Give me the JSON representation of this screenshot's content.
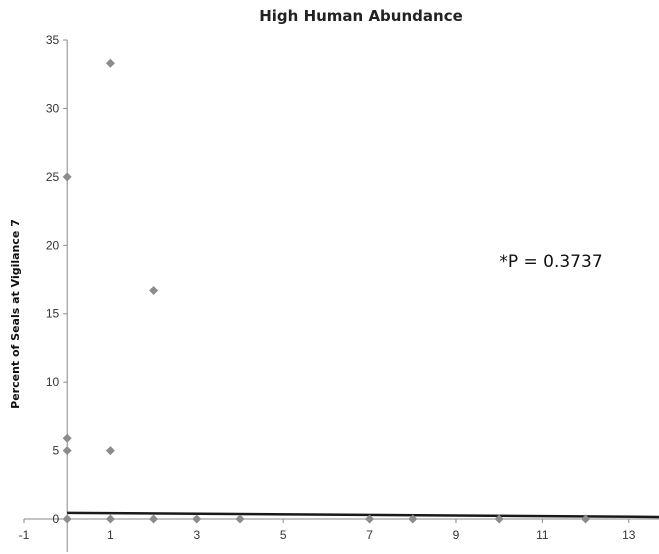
{
  "chart_data": {
    "type": "scatter",
    "title": "High Human Abundance",
    "xlabel": "",
    "ylabel": "Percent of Seals at Vigilance 7",
    "xlim": [
      -1,
      13.7
    ],
    "ylim": [
      0,
      35
    ],
    "xticks": [
      -1,
      1,
      3,
      5,
      7,
      9,
      11,
      13
    ],
    "yticks": [
      0,
      5,
      10,
      15,
      20,
      25,
      30,
      35
    ],
    "grid": false,
    "legend": "none",
    "marker": "diamond",
    "marker_color": "#8c8c8c",
    "trendline_color": "#1a1a1a",
    "points": [
      {
        "x": 0,
        "y": 25
      },
      {
        "x": 0,
        "y": 5.9
      },
      {
        "x": 0,
        "y": 5
      },
      {
        "x": 0,
        "y": 0
      },
      {
        "x": 1,
        "y": 33.3
      },
      {
        "x": 1,
        "y": 5
      },
      {
        "x": 1,
        "y": 0
      },
      {
        "x": 2,
        "y": 16.7
      },
      {
        "x": 2,
        "y": 0
      },
      {
        "x": 3,
        "y": 0
      },
      {
        "x": 4,
        "y": 0
      },
      {
        "x": 7,
        "y": 0
      },
      {
        "x": 8,
        "y": 0
      },
      {
        "x": 10,
        "y": 0
      },
      {
        "x": 12,
        "y": 0
      }
    ],
    "trendline": {
      "x": [
        0,
        13.7
      ],
      "y": [
        0.45,
        0.15
      ]
    },
    "annotations": [
      {
        "text": "*P = 0.3737",
        "x": 11.2,
        "y": 18.4
      }
    ]
  }
}
